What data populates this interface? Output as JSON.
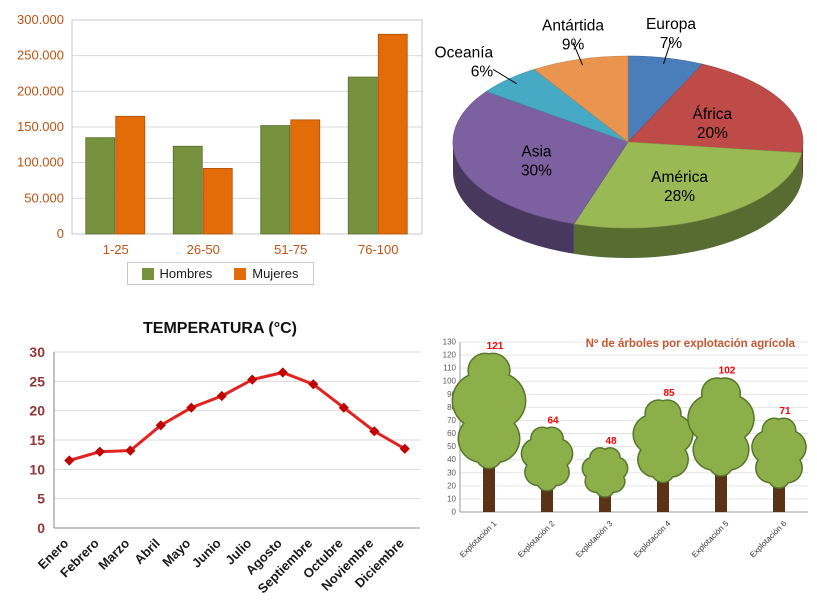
{
  "page": {
    "background": "#FFFFFF"
  },
  "chart_data": [
    {
      "type": "bar",
      "name": "poblacion-bar-chart",
      "title": "",
      "categories": [
        "1-25",
        "26-50",
        "51-75",
        "76-100"
      ],
      "series": [
        {
          "name": "Hombres",
          "color": "#76923C",
          "values": [
            135000,
            123000,
            152000,
            220000
          ]
        },
        {
          "name": "Mujeres",
          "color": "#E36C09",
          "values": [
            165000,
            92000,
            160000,
            280000
          ]
        }
      ],
      "ylim": [
        0,
        300000
      ],
      "ytick_step": 50000,
      "ytick_labels": [
        "0",
        "50.000",
        "100.000",
        "150.000",
        "200.000",
        "250.000",
        "300.000"
      ],
      "tick_color": "#BE5414",
      "grid": true,
      "legend_position": "bottom"
    },
    {
      "type": "pie",
      "style": "3d",
      "name": "continentes-pie-chart",
      "start_angle_deg": -90,
      "direction": "clockwise",
      "label_color": "#000000",
      "slices": [
        {
          "label": "Europa",
          "pct": 7,
          "color": "#4A7EBB"
        },
        {
          "label": "África",
          "pct": 20,
          "color": "#BE4B48"
        },
        {
          "label": "América",
          "pct": 28,
          "color": "#98B954"
        },
        {
          "label": "Asia",
          "pct": 30,
          "color": "#7D60A0"
        },
        {
          "label": "Oceanía",
          "pct": 6,
          "color": "#46AAC5"
        },
        {
          "label": "Antártida",
          "pct": 9,
          "color": "#E9954F"
        }
      ]
    },
    {
      "type": "line",
      "name": "temperatura-line-chart",
      "title": "TEMPERATURA (°C)",
      "categories": [
        "Enero",
        "Febrero",
        "Marzo",
        "Abril",
        "Mayo",
        "Junio",
        "Julio",
        "Agosto",
        "Septiembre",
        "Octubre",
        "Noviembre",
        "Diciembre"
      ],
      "values": [
        11.5,
        13,
        13.2,
        17.5,
        20.5,
        22.5,
        25.3,
        26.5,
        24.5,
        20.5,
        16.5,
        13.5
      ],
      "line_color": "#E02421",
      "marker": "diamond",
      "marker_color": "#C00000",
      "ylim": [
        0,
        30
      ],
      "ytick_step": 5,
      "ytick_color": "#943634",
      "xtick_color": "#1A1A1A",
      "grid": true
    },
    {
      "type": "pictorial_bar",
      "name": "arboles-pictorial-chart",
      "pictogram": "tree",
      "title": "Nº de árboles por explotación agrícola",
      "title_color": "#C65933",
      "categories": [
        "Explotación 1",
        "Explotación 2",
        "Explotación 3",
        "Explotación 4",
        "Explotación 5",
        "Explotación 6"
      ],
      "values": [
        121,
        64,
        48,
        85,
        102,
        71
      ],
      "value_label_color": "#FF0000",
      "ylim": [
        0,
        130
      ],
      "ytick_step": 10,
      "tick_color": "#595959",
      "tree_colors": {
        "canopy": "#8CAF4A",
        "canopy_outline": "#55772B",
        "trunk": "#5A3317"
      }
    }
  ]
}
